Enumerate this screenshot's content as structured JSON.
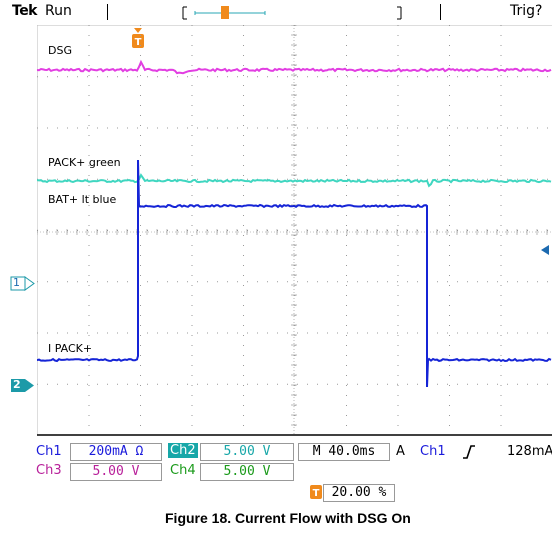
{
  "header": {
    "brand": "Tek",
    "run_state": "Run",
    "trigger_state": "Trig?"
  },
  "trace_labels": {
    "dsg": "DSG",
    "pack_plus": "PACK+ green",
    "bat_plus": "BAT+ lt blue",
    "i_pack": "I PACK+"
  },
  "channel_markers": {
    "ch1": "1",
    "ch2": "2"
  },
  "settings": {
    "ch1": {
      "label": "Ch1",
      "value": "200mA Ω",
      "color": "#1a1adb"
    },
    "ch2": {
      "label": "Ch2",
      "value": "5.00 V",
      "color": "#17a7a8"
    },
    "ch3": {
      "label": "Ch3",
      "value": "5.00 V",
      "color": "#b8209a"
    },
    "ch4": {
      "label": "Ch4",
      "value": "5.00 V",
      "color": "#1a9a1a"
    },
    "timebase": "M 40.0ms",
    "trigger_mode": "A",
    "trigger_source": "Ch1",
    "trigger_slope_icon": "rising-edge-icon",
    "trigger_level": "128mA",
    "trigger_position": "20.00 %"
  },
  "colors": {
    "dsg_trace": "#e23ee2",
    "pack_trace": "#3fd6c0",
    "bat_trace": "#1524d6",
    "trigger_marker": "#f08a1c",
    "ch2_badge": "#1c9aa8",
    "frame_bg": "#ffffff"
  },
  "caption": "Figure 18. Current Flow with DSG On"
}
